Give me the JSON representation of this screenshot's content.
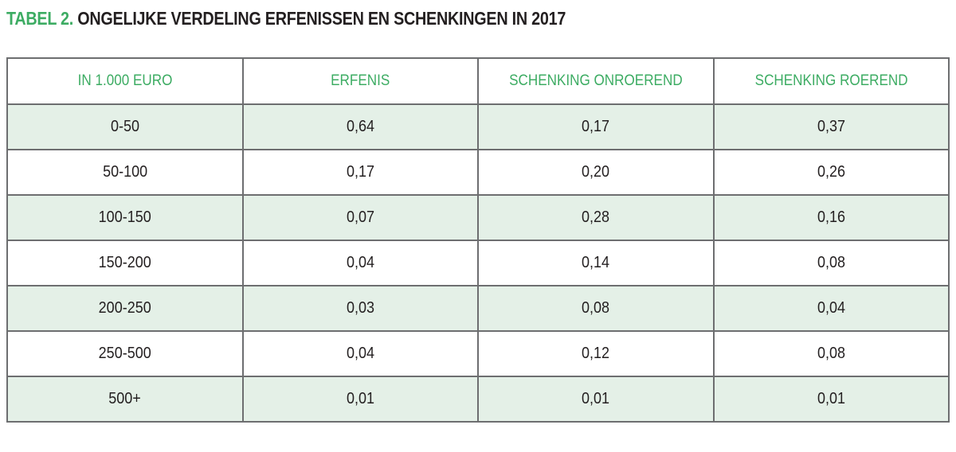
{
  "title": {
    "label": "TABEL 2.",
    "text": "ONGELIJKE VERDELING ERFENISSEN EN SCHENKINGEN IN 2017"
  },
  "table": {
    "headers": [
      "IN 1.000 EURO",
      "ERFENIS",
      "SCHENKING ONROEREND",
      "SCHENKING ROEREND"
    ],
    "rows": [
      [
        "0-50",
        "0,64",
        "0,17",
        "0,37"
      ],
      [
        "50-100",
        "0,17",
        "0,20",
        "0,26"
      ],
      [
        "100-150",
        "0,07",
        "0,28",
        "0,16"
      ],
      [
        "150-200",
        "0,04",
        "0,14",
        "0,08"
      ],
      [
        "200-250",
        "0,03",
        "0,08",
        "0,04"
      ],
      [
        "250-500",
        "0,04",
        "0,12",
        "0,08"
      ],
      [
        "500+",
        "0,01",
        "0,01",
        "0,01"
      ]
    ]
  },
  "colors": {
    "accent_green": "#3dac63",
    "row_green": "#e4f0e7",
    "border_gray": "#6d6e70",
    "text_dark": "#231f20"
  },
  "chart_data": {
    "type": "table",
    "title": "TABEL 2. ONGELIJKE VERDELING ERFENISSEN EN SCHENKINGEN IN 2017",
    "xlabel": "IN 1.000 EURO",
    "categories": [
      "0-50",
      "50-100",
      "100-150",
      "150-200",
      "200-250",
      "250-500",
      "500+"
    ],
    "series": [
      {
        "name": "ERFENIS",
        "values": [
          0.64,
          0.17,
          0.07,
          0.04,
          0.03,
          0.04,
          0.01
        ]
      },
      {
        "name": "SCHENKING ONROEREND",
        "values": [
          0.17,
          0.2,
          0.28,
          0.14,
          0.08,
          0.12,
          0.01
        ]
      },
      {
        "name": "SCHENKING ROEREND",
        "values": [
          0.37,
          0.26,
          0.16,
          0.08,
          0.04,
          0.08,
          0.01
        ]
      }
    ],
    "legend_position": "header-row",
    "grid": true
  }
}
